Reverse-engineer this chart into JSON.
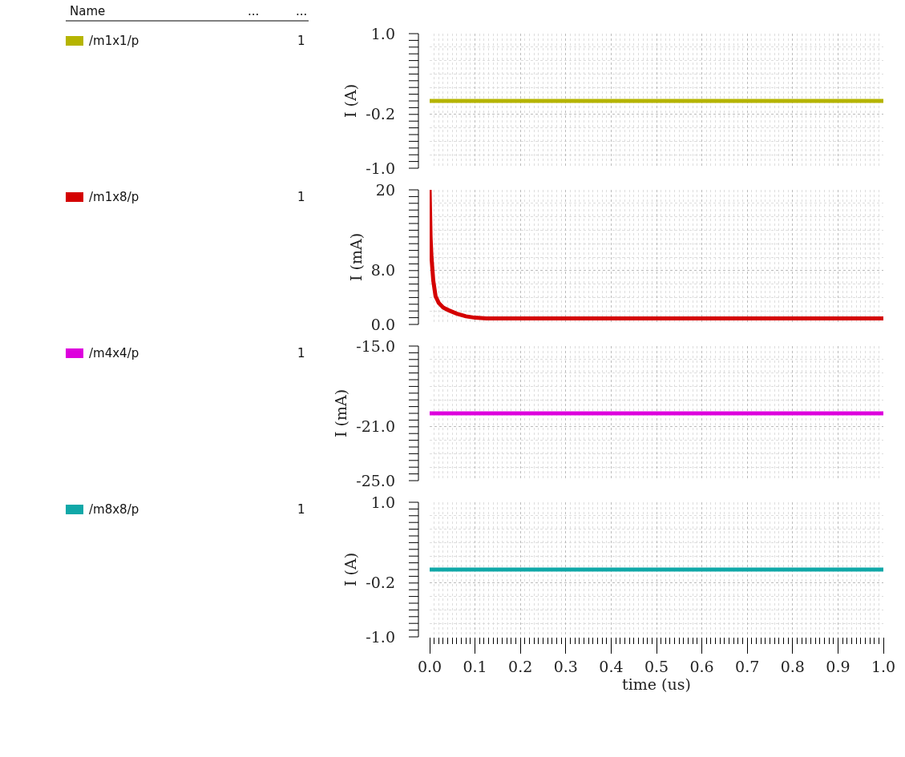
{
  "chart_data": [
    {
      "type": "line",
      "ylabel": "I (A)",
      "x": [
        0,
        1.0
      ],
      "xlim": [
        0,
        1.0
      ],
      "xticks": [
        0.0,
        0.1,
        0.2,
        0.3,
        0.4,
        0.5,
        0.6,
        0.7,
        0.8,
        0.9,
        1.0
      ],
      "ylim": [
        -1.0,
        1.0
      ],
      "yticks": [
        {
          "value": 1.0,
          "label": "1.0"
        },
        -0.2,
        {
          "value": -1.0,
          "label": "-1.0"
        }
      ],
      "grid": true,
      "tick_labels": "y",
      "marker": "none",
      "line_style": "solid",
      "annotations": [
        "Name",
        "...",
        "...",
        "1"
      ],
      "series": [
        {
          "name": "/m1x1/p",
          "color": "#b5b400",
          "values": [
            0,
            0
          ]
        }
      ]
    },
    {
      "type": "line",
      "ylabel": "I (mA)",
      "x": [
        0,
        0.002,
        0.004,
        0.008,
        0.013,
        0.02,
        0.03,
        0.042,
        0.06,
        0.08,
        0.1,
        0.125,
        1.0
      ],
      "xlim": [
        0,
        1.0
      ],
      "xticks": [
        0.0,
        0.1,
        0.2,
        0.3,
        0.4,
        0.5,
        0.6,
        0.7,
        0.8,
        0.9,
        1.0
      ],
      "ylim": [
        0,
        20
      ],
      "yticks": [
        {
          "value": 0,
          "label": "0.0"
        },
        {
          "value": 8,
          "label": "8.0"
        },
        20
      ],
      "grid": true,
      "tick_labels": "y",
      "marker": "none",
      "line_style": "solid",
      "annotations": [
        "1"
      ],
      "series": [
        {
          "name": "/m1x8/p",
          "color": "#d40000",
          "values": [
            20,
            13,
            10,
            6.5,
            4.2,
            3.2,
            2.5,
            2.1,
            1.6,
            1.2,
            1.0,
            0.9,
            0.9
          ]
        }
      ]
    },
    {
      "type": "line",
      "ylabel": "I (mA)",
      "x": [
        0,
        1.0
      ],
      "xlim": [
        0,
        1.0
      ],
      "xticks": [
        0.0,
        0.1,
        0.2,
        0.3,
        0.4,
        0.5,
        0.6,
        0.7,
        0.8,
        0.9,
        1.0
      ],
      "ylim": [
        -25,
        -15
      ],
      "yticks": [
        {
          "value": -15,
          "label": "-15.0"
        },
        {
          "value": -21,
          "label": "-21.0"
        },
        {
          "value": -25,
          "label": "-25.0"
        }
      ],
      "grid": true,
      "tick_labels": "y",
      "marker": "none",
      "line_style": "solid",
      "annotations": [
        "1"
      ],
      "series": [
        {
          "name": "/m4x4/p",
          "color": "#dd00dd",
          "values": [
            -20,
            -20
          ]
        }
      ]
    },
    {
      "type": "line",
      "ylabel": "I (A)",
      "xlabel": "time (us)",
      "x": [
        0,
        1.0
      ],
      "xlim": [
        0,
        1.0
      ],
      "xticks": [
        {
          "value": 0,
          "label": "0.0"
        },
        0.1,
        0.2,
        0.3,
        0.4,
        0.5,
        0.6,
        0.7,
        0.8,
        0.9,
        {
          "value": 1.0,
          "label": "1.0"
        }
      ],
      "ylim": [
        -1.0,
        1.0
      ],
      "yticks": [
        {
          "value": 1.0,
          "label": "1.0"
        },
        -0.2,
        {
          "value": -1.0,
          "label": "-1.0"
        }
      ],
      "grid": true,
      "marker": "none",
      "line_style": "solid",
      "annotations": [
        "1"
      ],
      "series": [
        {
          "name": "/m8x8/p",
          "color": "#10a8a8",
          "values": [
            0,
            0
          ]
        }
      ]
    }
  ]
}
